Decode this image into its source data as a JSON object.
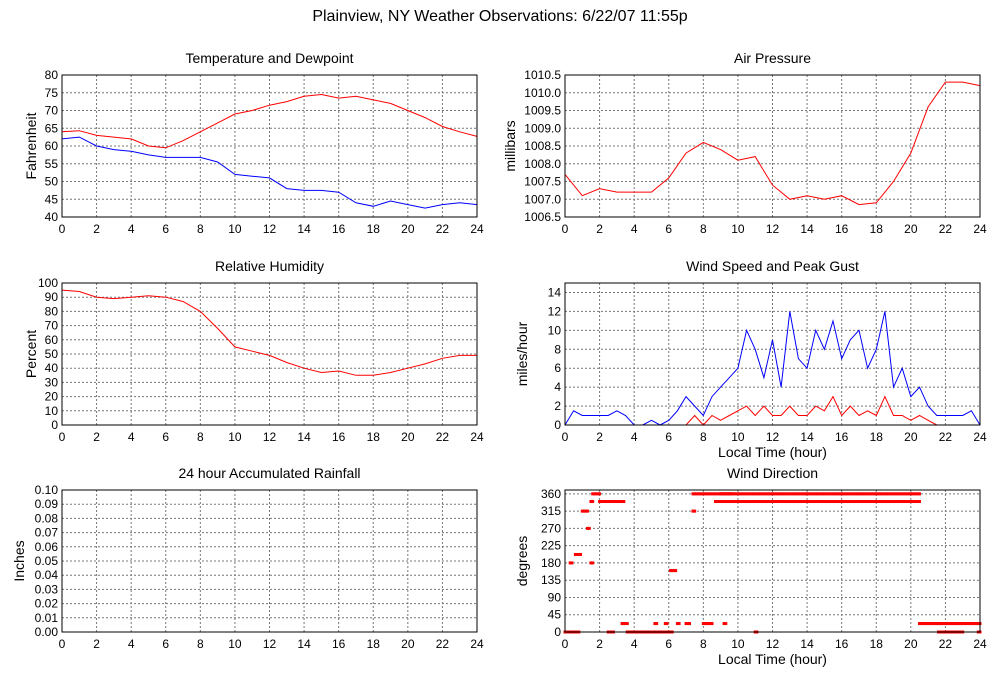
{
  "title": "Plainview, NY Weather Observations: 6/22/07 11:55p",
  "chart_data": [
    {
      "type": "line",
      "title": "Temperature and Dewpoint",
      "xlabel": "",
      "ylabel": "Fahrenheit",
      "xlim": [
        0,
        24
      ],
      "ylim": [
        40,
        80
      ],
      "xticks": [
        "0",
        "2",
        "4",
        "6",
        "8",
        "10",
        "12",
        "14",
        "16",
        "18",
        "20",
        "22",
        "24"
      ],
      "yticks": [
        "40",
        "45",
        "50",
        "55",
        "60",
        "65",
        "70",
        "75",
        "80"
      ],
      "grid": true,
      "x": [
        0,
        1,
        2,
        3,
        4,
        5,
        6,
        7,
        8,
        9,
        10,
        11,
        12,
        13,
        14,
        15,
        16,
        17,
        18,
        19,
        20,
        21,
        22,
        23,
        24
      ],
      "series": [
        {
          "name": "Temperature",
          "color": "#ff0000",
          "values": [
            64,
            64.3,
            63,
            62.5,
            62,
            60,
            59.5,
            61.5,
            64,
            66.5,
            69,
            70,
            71.5,
            72.5,
            74,
            74.5,
            73.5,
            74,
            73,
            72,
            70,
            68,
            65.5,
            64,
            62.7
          ]
        },
        {
          "name": "Dewpoint",
          "color": "#0000ff",
          "values": [
            62,
            62.5,
            60,
            59,
            58.5,
            57.5,
            56.8,
            56.8,
            56.8,
            55.5,
            52,
            51.5,
            51,
            48,
            47.5,
            47.5,
            47,
            44,
            43,
            44.5,
            43.5,
            42.5,
            43.5,
            44,
            43.5
          ]
        }
      ]
    },
    {
      "type": "line",
      "title": "Air Pressure",
      "xlabel": "",
      "ylabel": "millibars",
      "xlim": [
        0,
        24
      ],
      "ylim": [
        1006.5,
        1010.5
      ],
      "xticks": [
        "0",
        "2",
        "4",
        "6",
        "8",
        "10",
        "12",
        "14",
        "16",
        "18",
        "20",
        "22",
        "24"
      ],
      "yticks": [
        "1006.5",
        "1007.0",
        "1007.5",
        "1008.0",
        "1008.5",
        "1009.0",
        "1009.5",
        "1010.0",
        "1010.5"
      ],
      "grid": true,
      "x": [
        0,
        1,
        2,
        3,
        4,
        5,
        6,
        7,
        8,
        9,
        10,
        11,
        12,
        13,
        14,
        15,
        16,
        17,
        18,
        19,
        20,
        21,
        22,
        23,
        24
      ],
      "series": [
        {
          "name": "Pressure",
          "color": "#ff0000",
          "values": [
            1007.7,
            1007.1,
            1007.3,
            1007.2,
            1007.2,
            1007.2,
            1007.6,
            1008.3,
            1008.6,
            1008.4,
            1008.1,
            1008.2,
            1007.4,
            1007.0,
            1007.1,
            1007.0,
            1007.1,
            1006.85,
            1006.9,
            1007.5,
            1008.3,
            1009.6,
            1010.3,
            1010.3,
            1010.2
          ]
        }
      ]
    },
    {
      "type": "line",
      "title": "Relative Humidity",
      "xlabel": "",
      "ylabel": "Percent",
      "xlim": [
        0,
        24
      ],
      "ylim": [
        0,
        100
      ],
      "xticks": [
        "0",
        "2",
        "4",
        "6",
        "8",
        "10",
        "12",
        "14",
        "16",
        "18",
        "20",
        "22",
        "24"
      ],
      "yticks": [
        "0",
        "10",
        "20",
        "30",
        "40",
        "50",
        "60",
        "70",
        "80",
        "90",
        "100"
      ],
      "grid": true,
      "x": [
        0,
        1,
        2,
        3,
        4,
        5,
        6,
        7,
        8,
        9,
        10,
        11,
        12,
        13,
        14,
        15,
        16,
        17,
        18,
        19,
        20,
        21,
        22,
        23,
        24
      ],
      "series": [
        {
          "name": "Relative Humidity",
          "color": "#ff0000",
          "values": [
            95,
            94,
            90,
            89,
            90,
            91,
            90,
            87,
            80,
            68,
            55,
            52,
            49,
            44,
            40,
            37,
            38,
            35,
            35,
            37,
            40,
            43,
            47,
            49,
            49
          ]
        }
      ]
    },
    {
      "type": "line",
      "title": "Wind Speed and Peak Gust",
      "xlabel": "Local Time (hour)",
      "ylabel": "miles/hour",
      "xlim": [
        0,
        24
      ],
      "ylim": [
        0,
        15
      ],
      "xticks": [
        "0",
        "2",
        "4",
        "6",
        "8",
        "10",
        "12",
        "14",
        "16",
        "18",
        "20",
        "22",
        "24"
      ],
      "yticks": [
        "0",
        "2",
        "4",
        "6",
        "8",
        "10",
        "12",
        "14"
      ],
      "grid": true,
      "x": [
        0,
        0.5,
        1,
        1.5,
        2,
        2.5,
        3,
        3.5,
        4,
        4.5,
        5,
        5.5,
        6,
        6.5,
        7,
        7.5,
        8,
        8.5,
        9,
        9.5,
        10,
        10.5,
        11,
        11.5,
        12,
        12.5,
        13,
        13.5,
        14,
        14.5,
        15,
        15.5,
        16,
        16.5,
        17,
        17.5,
        18,
        18.5,
        19,
        19.5,
        20,
        20.5,
        21,
        21.5,
        22,
        22.5,
        23,
        23.5,
        24
      ],
      "series": [
        {
          "name": "Peak Gust",
          "color": "#0000ff",
          "values": [
            0,
            1.5,
            1,
            1,
            1,
            1,
            1.5,
            1,
            0,
            0,
            0.5,
            0,
            0.5,
            1.5,
            3,
            2,
            1,
            3,
            4,
            5,
            6,
            10,
            8,
            5,
            9,
            4,
            12,
            7,
            6,
            10,
            8,
            11,
            7,
            9,
            10,
            6,
            8,
            12,
            4,
            6,
            3,
            4,
            2,
            1,
            1,
            1,
            1,
            1.5,
            0
          ]
        },
        {
          "name": "Wind Speed",
          "color": "#ff0000",
          "values": [
            0,
            0,
            0,
            0,
            0,
            0,
            0,
            0,
            0,
            0,
            0,
            0,
            0,
            0,
            0,
            1,
            0,
            1,
            0.5,
            1,
            1.5,
            2,
            1,
            2,
            1,
            1,
            2,
            1,
            1,
            2,
            1.5,
            3,
            1,
            2,
            1,
            1.5,
            1,
            3,
            1,
            1,
            0.5,
            1,
            0.5,
            0,
            0,
            0,
            0,
            0,
            0
          ]
        }
      ]
    },
    {
      "type": "line",
      "title": "24 hour Accumulated Rainfall",
      "xlabel": "",
      "ylabel": "Inches",
      "xlim": [
        0,
        24
      ],
      "ylim": [
        0,
        0.1
      ],
      "xticks": [
        "0",
        "2",
        "4",
        "6",
        "8",
        "10",
        "12",
        "14",
        "16",
        "18",
        "20",
        "22",
        "24"
      ],
      "yticks": [
        "0.00",
        "0.01",
        "0.02",
        "0.03",
        "0.04",
        "0.05",
        "0.06",
        "0.07",
        "0.08",
        "0.09",
        "0.10"
      ],
      "grid": true,
      "x": [
        0,
        24
      ],
      "series": [
        {
          "name": "Rainfall",
          "color": "#ff0000",
          "values": [
            0,
            0
          ]
        }
      ]
    },
    {
      "type": "scatter",
      "title": "Wind Direction",
      "xlabel": "Local Time (hour)",
      "ylabel": "degrees",
      "xlim": [
        0,
        24
      ],
      "ylim": [
        0,
        370
      ],
      "xticks": [
        "0",
        "2",
        "4",
        "6",
        "8",
        "10",
        "12",
        "14",
        "16",
        "18",
        "20",
        "22",
        "24"
      ],
      "yticks": [
        "0",
        "45",
        "90",
        "135",
        "180",
        "225",
        "270",
        "315",
        "360"
      ],
      "grid": true,
      "color": "#ff0000",
      "segments": [
        [
          0,
          0.8,
          0
        ],
        [
          0.3,
          0.4,
          180
        ],
        [
          0.6,
          0.9,
          202
        ],
        [
          1.0,
          1.3,
          315
        ],
        [
          1.3,
          1.4,
          270
        ],
        [
          1.5,
          1.6,
          180
        ],
        [
          1.5,
          1.6,
          340
        ],
        [
          1.6,
          2.0,
          360
        ],
        [
          2.0,
          3.4,
          340
        ],
        [
          2.5,
          2.8,
          0
        ],
        [
          3.3,
          3.6,
          22
        ],
        [
          3.6,
          6.2,
          0
        ],
        [
          5.2,
          5.3,
          22
        ],
        [
          5.8,
          5.9,
          22
        ],
        [
          6.1,
          6.4,
          160
        ],
        [
          6.5,
          6.6,
          22
        ],
        [
          7.0,
          7.2,
          22
        ],
        [
          7.4,
          7.5,
          315
        ],
        [
          7.4,
          9.6,
          360
        ],
        [
          8.0,
          8.5,
          22
        ],
        [
          9.2,
          9.3,
          22
        ],
        [
          8.7,
          20.5,
          340
        ],
        [
          9.0,
          20.5,
          360
        ],
        [
          11.0,
          11.1,
          0
        ],
        [
          20.5,
          24,
          22
        ],
        [
          21.6,
          23.0,
          0
        ],
        [
          23.9,
          24,
          0
        ]
      ]
    }
  ]
}
